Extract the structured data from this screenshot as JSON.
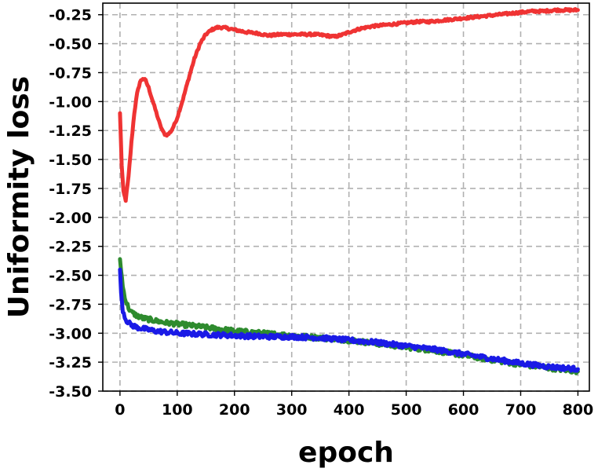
{
  "chart_data": {
    "type": "line",
    "title": "",
    "xlabel": "epoch",
    "ylabel": "Uniformity loss",
    "xlim": [
      -30,
      820
    ],
    "ylim": [
      -3.5,
      -0.15
    ],
    "xticks": [
      0,
      100,
      200,
      300,
      400,
      500,
      600,
      700,
      800
    ],
    "yticks": [
      -3.5,
      -3.25,
      -3.0,
      -2.75,
      -2.5,
      -2.25,
      -2.0,
      -1.75,
      -1.5,
      -1.25,
      -1.0,
      -0.75,
      -0.5,
      -0.25
    ],
    "ytick_labels": [
      "-3.50",
      "-3.25",
      "-3.00",
      "-2.75",
      "-2.50",
      "-2.25",
      "-2.00",
      "-1.75",
      "-1.50",
      "-1.25",
      "-1.00",
      "-0.75",
      "-0.50",
      "-0.25"
    ],
    "grid": true,
    "legend": "none",
    "series": [
      {
        "color": "#ef3333",
        "noise": 0.01,
        "x": [
          0,
          3,
          6,
          10,
          15,
          20,
          25,
          30,
          35,
          40,
          45,
          50,
          55,
          60,
          65,
          70,
          75,
          80,
          85,
          90,
          95,
          100,
          110,
          120,
          130,
          140,
          150,
          160,
          170,
          180,
          190,
          200,
          220,
          240,
          260,
          280,
          300,
          320,
          340,
          360,
          375,
          390,
          400,
          420,
          440,
          460,
          480,
          500,
          520,
          540,
          560,
          580,
          600,
          620,
          640,
          660,
          680,
          700,
          720,
          740,
          760,
          780,
          800
        ],
        "y": [
          -1.1,
          -1.55,
          -1.78,
          -1.85,
          -1.65,
          -1.35,
          -1.1,
          -0.93,
          -0.83,
          -0.8,
          -0.82,
          -0.88,
          -0.96,
          -1.04,
          -1.12,
          -1.2,
          -1.26,
          -1.29,
          -1.28,
          -1.25,
          -1.2,
          -1.14,
          -0.98,
          -0.8,
          -0.63,
          -0.5,
          -0.42,
          -0.38,
          -0.36,
          -0.36,
          -0.37,
          -0.38,
          -0.4,
          -0.41,
          -0.43,
          -0.42,
          -0.42,
          -0.42,
          -0.42,
          -0.43,
          -0.44,
          -0.42,
          -0.4,
          -0.37,
          -0.35,
          -0.34,
          -0.33,
          -0.32,
          -0.31,
          -0.31,
          -0.3,
          -0.29,
          -0.28,
          -0.27,
          -0.26,
          -0.25,
          -0.24,
          -0.23,
          -0.22,
          -0.22,
          -0.21,
          -0.21,
          -0.21
        ]
      },
      {
        "color": "#2e8b2e",
        "noise": 0.02,
        "x": [
          0,
          2,
          5,
          10,
          15,
          20,
          30,
          40,
          50,
          60,
          80,
          100,
          150,
          200,
          250,
          300,
          350,
          400,
          450,
          500,
          550,
          600,
          650,
          700,
          750,
          800
        ],
        "y": [
          -2.36,
          -2.45,
          -2.6,
          -2.72,
          -2.78,
          -2.82,
          -2.85,
          -2.87,
          -2.88,
          -2.89,
          -2.91,
          -2.92,
          -2.95,
          -2.98,
          -3.0,
          -3.02,
          -3.04,
          -3.06,
          -3.09,
          -3.12,
          -3.15,
          -3.19,
          -3.23,
          -3.27,
          -3.3,
          -3.33
        ]
      },
      {
        "color": "#1a1ae6",
        "noise": 0.02,
        "x": [
          0,
          2,
          5,
          10,
          15,
          20,
          30,
          40,
          50,
          60,
          80,
          100,
          150,
          200,
          250,
          300,
          350,
          400,
          450,
          500,
          550,
          600,
          650,
          700,
          750,
          800
        ],
        "y": [
          -2.45,
          -2.65,
          -2.8,
          -2.88,
          -2.91,
          -2.93,
          -2.95,
          -2.96,
          -2.97,
          -2.98,
          -2.99,
          -3.0,
          -3.01,
          -3.02,
          -3.03,
          -3.03,
          -3.04,
          -3.06,
          -3.08,
          -3.11,
          -3.14,
          -3.18,
          -3.22,
          -3.26,
          -3.29,
          -3.31
        ]
      }
    ]
  }
}
